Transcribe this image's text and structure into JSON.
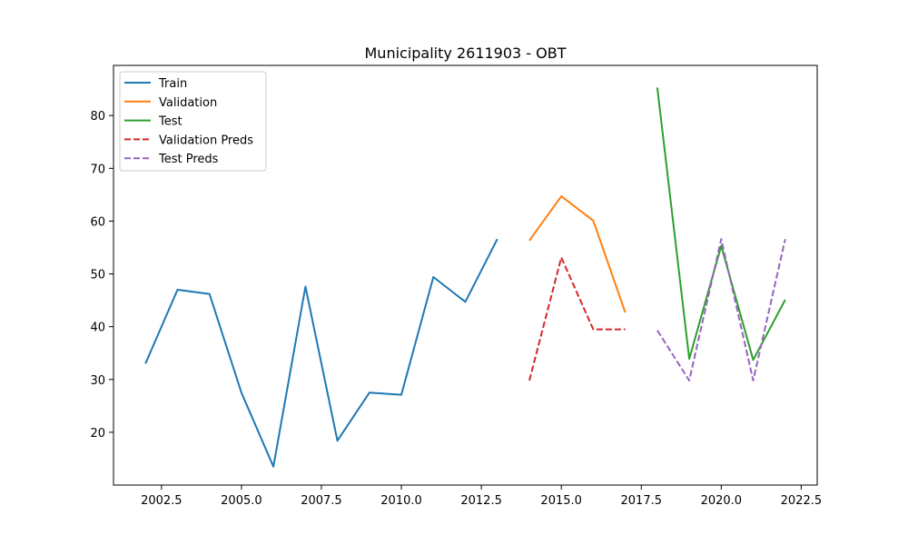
{
  "chart_data": {
    "type": "line",
    "title": "Municipality 2611903 - OBT",
    "xlabel": "",
    "ylabel": "",
    "xlim": [
      2001.0,
      2023.0
    ],
    "ylim": [
      10.0,
      89.5
    ],
    "xticks": [
      2002.5,
      2005.0,
      2007.5,
      2010.0,
      2012.5,
      2015.0,
      2017.5,
      2020.0,
      2022.5
    ],
    "xtick_labels": [
      "2002.5",
      "2005.0",
      "2007.5",
      "2010.0",
      "2012.5",
      "2015.0",
      "2017.5",
      "2020.0",
      "2022.5"
    ],
    "yticks": [
      20,
      30,
      40,
      50,
      60,
      70,
      80
    ],
    "ytick_labels": [
      "20",
      "30",
      "40",
      "50",
      "60",
      "70",
      "80"
    ],
    "grid": false,
    "legend_position": "upper-left",
    "series": [
      {
        "name": "Train",
        "color": "#1f77b4",
        "dash": "solid",
        "x": [
          2002,
          2003,
          2004,
          2005,
          2006,
          2007,
          2008,
          2009,
          2010,
          2011,
          2012,
          2013
        ],
        "y": [
          33.0,
          47.0,
          46.2,
          27.5,
          13.5,
          47.6,
          18.4,
          27.5,
          27.1,
          49.4,
          44.7,
          56.6
        ]
      },
      {
        "name": "Validation",
        "color": "#ff7f0e",
        "dash": "solid",
        "x": [
          2014,
          2015,
          2016,
          2017
        ],
        "y": [
          56.3,
          64.7,
          60.1,
          42.7
        ]
      },
      {
        "name": "Test",
        "color": "#2ca02c",
        "dash": "solid",
        "x": [
          2018,
          2019,
          2020,
          2021,
          2022
        ],
        "y": [
          85.3,
          33.9,
          55.3,
          33.7,
          45.1
        ]
      },
      {
        "name": "Validation Preds",
        "color": "#d62728",
        "dash": "dashed",
        "x": [
          2014,
          2015,
          2016,
          2017
        ],
        "y": [
          29.8,
          53.1,
          39.5,
          39.5
        ]
      },
      {
        "name": "Test Preds",
        "color": "#9467bd",
        "dash": "dashed",
        "x": [
          2018,
          2019,
          2020,
          2021,
          2022
        ],
        "y": [
          39.3,
          29.8,
          56.6,
          29.8,
          56.6
        ]
      }
    ]
  }
}
